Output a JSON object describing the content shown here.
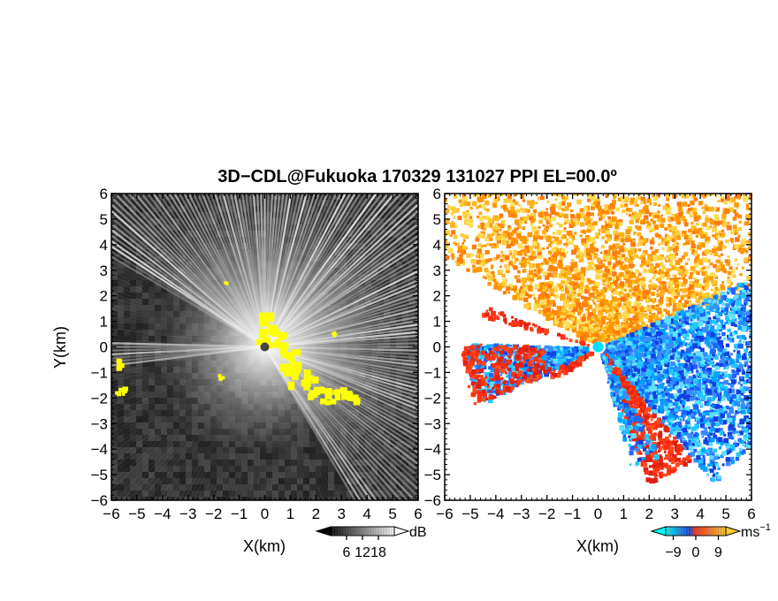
{
  "title": "3D−CDL@Fukuoka 170329 131027 PPI EL=00.0º",
  "chart_data": [
    {
      "type": "heatmap",
      "panel": "left",
      "xlabel": "X(km)",
      "ylabel": "Y(km)",
      "xlim": [
        -6,
        6
      ],
      "ylim": [
        -6,
        6
      ],
      "xticks": [
        "−6",
        "−5",
        "−4",
        "−3",
        "−2",
        "−1",
        "0",
        "1",
        "2",
        "3",
        "4",
        "5",
        "6"
      ],
      "yticks": [
        "6",
        "5",
        "4",
        "3",
        "2",
        "1",
        "0",
        "−1",
        "−2",
        "−3",
        "−4",
        "−5",
        "−6"
      ],
      "colorbar": {
        "unit": "dB",
        "ticks": [
          "6",
          "12",
          "18"
        ],
        "tick_values": [
          6,
          12,
          18
        ],
        "range": [
          0,
          24
        ],
        "colors": [
          "#000000",
          "#ffffff"
        ]
      },
      "highlight_color": "#ffff00",
      "background_color": "#303030"
    },
    {
      "type": "heatmap",
      "panel": "right",
      "xlabel": "X(km)",
      "xlim": [
        -6,
        6
      ],
      "ylim": [
        -6,
        6
      ],
      "xticks": [
        "−6",
        "−5",
        "−4",
        "−3",
        "−2",
        "−1",
        "0",
        "1",
        "2",
        "3",
        "4",
        "5",
        "6"
      ],
      "yticks": [
        "6",
        "5",
        "4",
        "3",
        "2",
        "1",
        "0",
        "−1",
        "−2",
        "−3",
        "−4",
        "−5",
        "−6"
      ],
      "colorbar": {
        "unit": "ms",
        "unit_exp": "−1",
        "ticks": [
          "−9",
          "0",
          "9"
        ],
        "tick_values": [
          -9,
          0,
          9
        ],
        "range": [
          -12,
          12
        ],
        "colors": [
          "#00ffff",
          "#1040e0",
          "#ff3010",
          "#ffcc33"
        ]
      },
      "positive_color": "#ff9900",
      "negative_color": "#1e64ff",
      "background_color": "#ffffff"
    }
  ]
}
